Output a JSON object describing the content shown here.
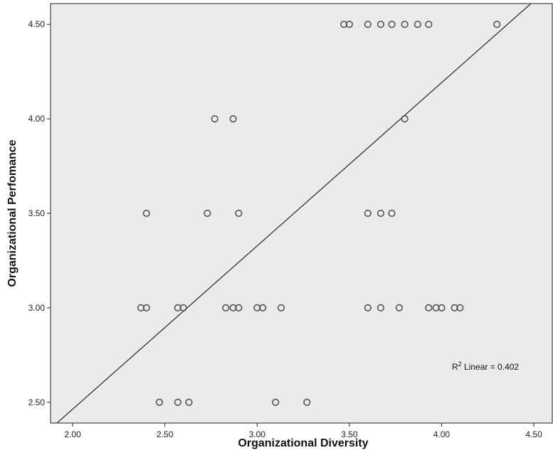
{
  "chart_data": {
    "type": "scatter",
    "title": "",
    "xlabel": "Organizational Diversity",
    "ylabel": "Organizational Perfomance",
    "xlim": [
      1.88,
      4.6
    ],
    "ylim": [
      2.39,
      4.61
    ],
    "xticks": [
      2.0,
      2.5,
      3.0,
      3.5,
      4.0,
      4.5
    ],
    "yticks": [
      2.5,
      3.0,
      3.5,
      4.0,
      4.5
    ],
    "xtick_labels": [
      "2.00",
      "2.50",
      "3.00",
      "3.50",
      "4.00",
      "4.50"
    ],
    "ytick_labels": [
      "2.50",
      "3.00",
      "3.50",
      "4.00",
      "4.50"
    ],
    "grid": false,
    "colors": {
      "plot_bg": "#ebebeb",
      "marker_edge": "#555555",
      "fit_line": "#333333"
    },
    "fit_line": {
      "x": [
        1.88,
        4.6
      ],
      "y": [
        2.36,
        4.71
      ]
    },
    "annotation": {
      "prefix": "R",
      "sup": "2",
      "suffix": " Linear = 0.402"
    },
    "points": [
      {
        "x": 3.47,
        "y": 4.5
      },
      {
        "x": 3.5,
        "y": 4.5
      },
      {
        "x": 3.6,
        "y": 4.5
      },
      {
        "x": 3.67,
        "y": 4.5
      },
      {
        "x": 3.73,
        "y": 4.5
      },
      {
        "x": 3.8,
        "y": 4.5
      },
      {
        "x": 3.87,
        "y": 4.5
      },
      {
        "x": 3.93,
        "y": 4.5
      },
      {
        "x": 4.3,
        "y": 4.5
      },
      {
        "x": 2.77,
        "y": 4.0
      },
      {
        "x": 2.87,
        "y": 4.0
      },
      {
        "x": 3.8,
        "y": 4.0
      },
      {
        "x": 2.4,
        "y": 3.5
      },
      {
        "x": 2.73,
        "y": 3.5
      },
      {
        "x": 2.9,
        "y": 3.5
      },
      {
        "x": 3.6,
        "y": 3.5
      },
      {
        "x": 3.67,
        "y": 3.5
      },
      {
        "x": 3.73,
        "y": 3.5
      },
      {
        "x": 2.37,
        "y": 3.0
      },
      {
        "x": 2.4,
        "y": 3.0
      },
      {
        "x": 2.57,
        "y": 3.0
      },
      {
        "x": 2.6,
        "y": 3.0
      },
      {
        "x": 2.83,
        "y": 3.0
      },
      {
        "x": 2.87,
        "y": 3.0
      },
      {
        "x": 2.9,
        "y": 3.0
      },
      {
        "x": 3.0,
        "y": 3.0
      },
      {
        "x": 3.03,
        "y": 3.0
      },
      {
        "x": 3.13,
        "y": 3.0
      },
      {
        "x": 3.6,
        "y": 3.0
      },
      {
        "x": 3.67,
        "y": 3.0
      },
      {
        "x": 3.77,
        "y": 3.0
      },
      {
        "x": 3.93,
        "y": 3.0
      },
      {
        "x": 3.97,
        "y": 3.0
      },
      {
        "x": 4.0,
        "y": 3.0
      },
      {
        "x": 4.07,
        "y": 3.0
      },
      {
        "x": 4.1,
        "y": 3.0
      },
      {
        "x": 2.47,
        "y": 2.5
      },
      {
        "x": 2.57,
        "y": 2.5
      },
      {
        "x": 2.63,
        "y": 2.5
      },
      {
        "x": 3.1,
        "y": 2.5
      },
      {
        "x": 3.27,
        "y": 2.5
      }
    ]
  }
}
